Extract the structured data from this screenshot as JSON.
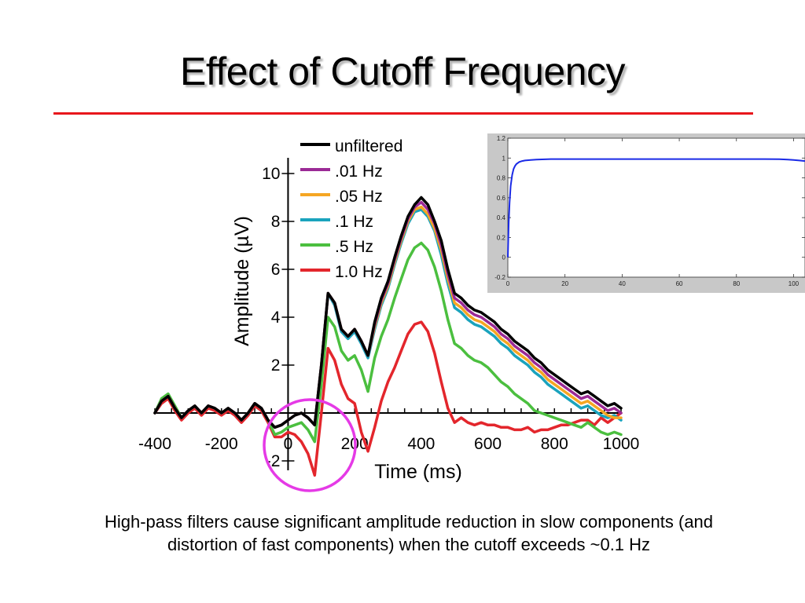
{
  "slide": {
    "title": "Effect of Cutoff Frequency",
    "caption": "High-pass filters cause significant amplitude reduction in slow components (and distortion of fast components) when the cutoff exceeds ~0.1 Hz"
  },
  "colors": {
    "title_rule": "#e8161c",
    "highlight_circle": "#e53ae6",
    "inset_curve": "#1a2ae6"
  },
  "chart_data": [
    {
      "type": "line",
      "title": "",
      "xlabel": "Time (ms)",
      "ylabel": "Amplitude (µV)",
      "xlim": [
        -400,
        1000
      ],
      "ylim": [
        -2,
        10
      ],
      "xticks": [
        -400,
        -200,
        0,
        200,
        400,
        600,
        800,
        1000
      ],
      "yticks": [
        -2,
        2,
        4,
        6,
        8,
        10
      ],
      "grid": false,
      "legend_position": "top-center",
      "x": [
        -400,
        -380,
        -360,
        -340,
        -320,
        -300,
        -280,
        -260,
        -240,
        -220,
        -200,
        -180,
        -160,
        -140,
        -120,
        -100,
        -80,
        -60,
        -40,
        -20,
        0,
        20,
        40,
        60,
        80,
        100,
        120,
        140,
        160,
        180,
        200,
        220,
        240,
        260,
        280,
        300,
        320,
        340,
        360,
        380,
        400,
        420,
        440,
        460,
        480,
        500,
        520,
        540,
        560,
        580,
        600,
        620,
        640,
        660,
        680,
        700,
        720,
        740,
        760,
        780,
        800,
        820,
        840,
        860,
        880,
        900,
        920,
        940,
        960,
        980,
        1000
      ],
      "series": [
        {
          "name": "unfiltered",
          "color": "#000000",
          "values": [
            0.0,
            0.5,
            0.7,
            0.2,
            -0.2,
            0.1,
            0.3,
            0.0,
            0.3,
            0.2,
            0.0,
            0.2,
            0.0,
            -0.3,
            0.0,
            0.4,
            0.2,
            -0.3,
            -0.6,
            -0.5,
            -0.3,
            -0.1,
            0.0,
            -0.2,
            -0.5,
            2.0,
            5.0,
            4.6,
            3.5,
            3.2,
            3.5,
            3.0,
            2.4,
            3.8,
            4.8,
            5.5,
            6.5,
            7.4,
            8.2,
            8.7,
            9.0,
            8.7,
            8.0,
            7.2,
            6.0,
            5.0,
            4.8,
            4.5,
            4.3,
            4.2,
            4.0,
            3.8,
            3.5,
            3.3,
            3.0,
            2.8,
            2.6,
            2.3,
            2.1,
            1.8,
            1.6,
            1.4,
            1.2,
            1.0,
            0.8,
            0.9,
            0.7,
            0.5,
            0.3,
            0.4,
            0.2
          ]
        },
        {
          "name": ".01 Hz",
          "color": "#9b2a96",
          "values": [
            0.0,
            0.5,
            0.7,
            0.2,
            -0.2,
            0.1,
            0.3,
            0.0,
            0.3,
            0.2,
            0.0,
            0.2,
            0.0,
            -0.3,
            0.0,
            0.4,
            0.2,
            -0.3,
            -0.6,
            -0.5,
            -0.3,
            -0.1,
            0.0,
            -0.2,
            -0.5,
            2.0,
            5.0,
            4.6,
            3.5,
            3.2,
            3.5,
            3.0,
            2.4,
            3.7,
            4.7,
            5.4,
            6.4,
            7.3,
            8.1,
            8.6,
            8.8,
            8.5,
            7.9,
            7.0,
            5.8,
            4.8,
            4.6,
            4.3,
            4.1,
            4.0,
            3.8,
            3.6,
            3.3,
            3.1,
            2.8,
            2.6,
            2.4,
            2.1,
            1.9,
            1.6,
            1.4,
            1.2,
            1.0,
            0.8,
            0.6,
            0.7,
            0.5,
            0.3,
            0.1,
            0.2,
            0.0
          ]
        },
        {
          "name": ".05 Hz",
          "color": "#f5a623",
          "values": [
            0.0,
            0.5,
            0.7,
            0.2,
            -0.2,
            0.1,
            0.3,
            0.0,
            0.3,
            0.2,
            0.0,
            0.2,
            0.0,
            -0.3,
            0.0,
            0.4,
            0.2,
            -0.3,
            -0.6,
            -0.5,
            -0.3,
            -0.1,
            0.0,
            -0.2,
            -0.5,
            2.0,
            5.0,
            4.6,
            3.5,
            3.2,
            3.5,
            3.0,
            2.4,
            3.6,
            4.6,
            5.3,
            6.3,
            7.2,
            8.0,
            8.5,
            8.6,
            8.3,
            7.7,
            6.8,
            5.6,
            4.6,
            4.4,
            4.1,
            3.9,
            3.8,
            3.6,
            3.4,
            3.1,
            2.9,
            2.6,
            2.4,
            2.2,
            1.9,
            1.7,
            1.4,
            1.2,
            1.0,
            0.8,
            0.6,
            0.4,
            0.5,
            0.3,
            0.1,
            -0.1,
            -0.2,
            -0.2
          ]
        },
        {
          "name": ".1 Hz",
          "color": "#1aa3bd",
          "values": [
            0.0,
            0.5,
            0.7,
            0.2,
            -0.2,
            0.1,
            0.3,
            0.0,
            0.3,
            0.2,
            0.0,
            0.2,
            0.0,
            -0.3,
            0.0,
            0.4,
            0.2,
            -0.3,
            -0.6,
            -0.5,
            -0.3,
            -0.1,
            0.0,
            -0.2,
            -0.5,
            2.0,
            5.0,
            4.5,
            3.4,
            3.1,
            3.4,
            2.9,
            2.3,
            3.5,
            4.5,
            5.2,
            6.2,
            7.1,
            7.9,
            8.4,
            8.5,
            8.2,
            7.6,
            6.6,
            5.4,
            4.4,
            4.2,
            3.9,
            3.7,
            3.6,
            3.4,
            3.2,
            2.9,
            2.7,
            2.4,
            2.2,
            2.0,
            1.7,
            1.5,
            1.2,
            1.0,
            0.8,
            0.6,
            0.4,
            0.2,
            0.3,
            0.1,
            -0.1,
            -0.2,
            -0.1,
            -0.3
          ]
        },
        {
          "name": ".5 Hz",
          "color": "#4bbf3f",
          "values": [
            0.0,
            0.6,
            0.8,
            0.3,
            -0.2,
            0.1,
            0.3,
            0.0,
            0.3,
            0.2,
            0.0,
            0.2,
            0.0,
            -0.3,
            0.0,
            0.4,
            0.2,
            -0.3,
            -0.9,
            -0.8,
            -0.6,
            -0.5,
            -0.4,
            -0.7,
            -1.2,
            1.2,
            4.0,
            3.6,
            2.6,
            2.2,
            2.4,
            1.8,
            0.9,
            2.3,
            3.2,
            3.9,
            4.8,
            5.6,
            6.4,
            6.9,
            7.1,
            6.8,
            6.1,
            5.1,
            3.9,
            2.9,
            2.7,
            2.4,
            2.2,
            2.1,
            1.9,
            1.6,
            1.3,
            1.1,
            0.8,
            0.6,
            0.4,
            0.1,
            0.0,
            -0.1,
            -0.2,
            -0.3,
            -0.4,
            -0.5,
            -0.6,
            -0.4,
            -0.6,
            -0.8,
            -0.9,
            -0.8,
            -0.9
          ]
        },
        {
          "name": "1.0 Hz",
          "color": "#e3262c",
          "values": [
            0.0,
            0.4,
            0.6,
            0.1,
            -0.3,
            0.0,
            0.2,
            -0.1,
            0.2,
            0.1,
            -0.1,
            0.1,
            -0.1,
            -0.4,
            -0.1,
            0.3,
            0.1,
            -0.4,
            -1.0,
            -1.0,
            -0.8,
            -0.9,
            -1.2,
            -1.7,
            -2.6,
            0.0,
            2.7,
            2.2,
            1.2,
            0.6,
            0.4,
            -0.8,
            -1.6,
            -0.6,
            0.5,
            1.3,
            1.9,
            2.6,
            3.3,
            3.7,
            3.8,
            3.4,
            2.5,
            1.3,
            0.2,
            -0.4,
            -0.2,
            -0.4,
            -0.5,
            -0.4,
            -0.5,
            -0.5,
            -0.6,
            -0.6,
            -0.7,
            -0.7,
            -0.6,
            -0.8,
            -0.7,
            -0.7,
            -0.6,
            -0.5,
            -0.5,
            -0.4,
            -0.3,
            -0.3,
            -0.5,
            -0.2,
            -0.4,
            -0.2,
            0.0
          ]
        }
      ]
    },
    {
      "type": "line",
      "xlim": [
        0,
        104
      ],
      "ylim": [
        -0.2,
        1.2
      ],
      "xticks": [
        0,
        20,
        40,
        60,
        80,
        100
      ],
      "yticks": [
        -0.2,
        0,
        0.2,
        0.4,
        0.6,
        0.8,
        1,
        1.2
      ],
      "x": [
        0,
        0.3,
        0.6,
        1,
        1.5,
        2,
        2.5,
        3,
        4,
        5,
        6,
        8,
        10,
        15,
        20,
        30,
        40,
        50,
        60,
        70,
        80,
        90,
        95,
        98,
        100,
        102,
        104
      ],
      "values": [
        0.0,
        0.35,
        0.55,
        0.72,
        0.83,
        0.89,
        0.92,
        0.94,
        0.96,
        0.97,
        0.975,
        0.98,
        0.985,
        0.99,
        0.99,
        0.99,
        0.99,
        0.99,
        0.99,
        0.99,
        0.99,
        0.99,
        0.988,
        0.985,
        0.98,
        0.975,
        0.97
      ],
      "color": "#1a2ae6"
    }
  ]
}
